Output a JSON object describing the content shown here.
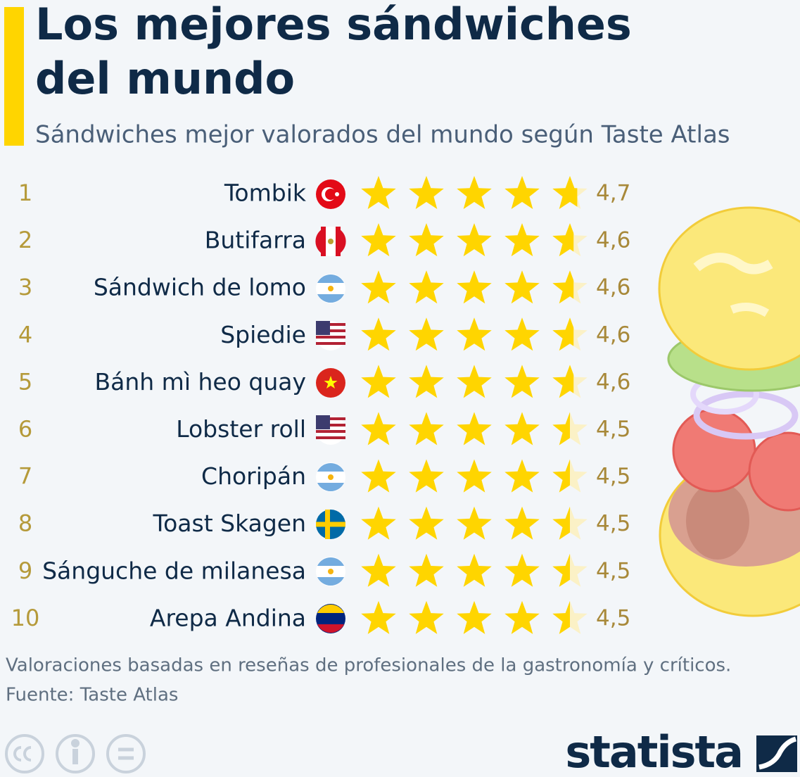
{
  "chart_data": {
    "type": "rating",
    "title": [
      "Los mejores sándwiches",
      "del mundo"
    ],
    "subtitle": "Sándwiches mejor valorados del mundo según Taste Atlas",
    "ranks": [
      1,
      2,
      3,
      4,
      5,
      6,
      7,
      8,
      9,
      10
    ],
    "categories": [
      "Tombik",
      "Butifarra",
      "Sándwich de lomo",
      "Spiedie",
      "Bánh mì heo quay",
      "Lobster roll",
      "Choripán",
      "Toast Skagen",
      "Sánguche de milanesa",
      "Arepa Andina"
    ],
    "values": [
      4.7,
      4.6,
      4.6,
      4.6,
      4.6,
      4.5,
      4.5,
      4.5,
      4.5,
      4.5
    ],
    "value_labels": [
      "4,7",
      "4,6",
      "4,6",
      "4,6",
      "4,6",
      "4,5",
      "4,5",
      "4,5",
      "4,5",
      "4,5"
    ],
    "xlim": [
      0,
      5
    ],
    "color": "#ffd500",
    "note": "Valoraciones basadas en reseñas de profesionales de la gastronomía y críticos.",
    "source": "Fuente: Taste Atlas"
  },
  "logo": "statista"
}
